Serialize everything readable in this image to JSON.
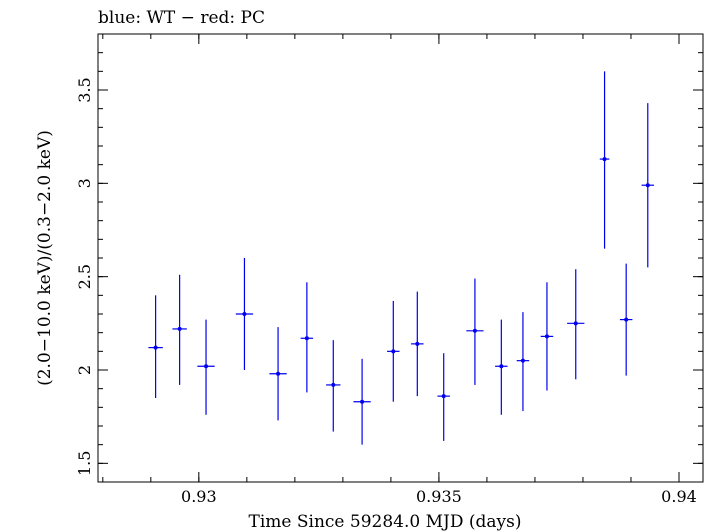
{
  "chart_data": {
    "type": "scatter",
    "title": "blue: WT − red: PC",
    "xlabel": "Time Since 59284.0 MJD (days)",
    "ylabel": "(2.0−10.0 keV)/(0.3−2.0 keV)",
    "xlim": [
      0.9279,
      0.9405
    ],
    "ylim": [
      1.4,
      3.8
    ],
    "xticks": [
      {
        "value": 0.93,
        "label": "0.93"
      },
      {
        "value": 0.935,
        "label": "0.935"
      },
      {
        "value": 0.94,
        "label": "0.94"
      }
    ],
    "yticks": [
      {
        "value": 1.5,
        "label": "1.5"
      },
      {
        "value": 2,
        "label": "2"
      },
      {
        "value": 2.5,
        "label": "2.5"
      },
      {
        "value": 3,
        "label": "3"
      },
      {
        "value": 3.5,
        "label": "3.5"
      }
    ],
    "series": [
      {
        "name": "WT",
        "color": "#0000ee",
        "points": [
          {
            "x": 0.9291,
            "xerr": 0.00015,
            "y": 2.12,
            "ylo": 1.85,
            "yhi": 2.4
          },
          {
            "x": 0.9296,
            "xerr": 0.00015,
            "y": 2.22,
            "ylo": 1.92,
            "yhi": 2.51
          },
          {
            "x": 0.93015,
            "xerr": 0.00018,
            "y": 2.02,
            "ylo": 1.76,
            "yhi": 2.27
          },
          {
            "x": 0.93095,
            "xerr": 0.00018,
            "y": 2.3,
            "ylo": 2.0,
            "yhi": 2.6
          },
          {
            "x": 0.93165,
            "xerr": 0.00018,
            "y": 1.98,
            "ylo": 1.73,
            "yhi": 2.23
          },
          {
            "x": 0.93225,
            "xerr": 0.00013,
            "y": 2.17,
            "ylo": 1.88,
            "yhi": 2.47
          },
          {
            "x": 0.9328,
            "xerr": 0.00015,
            "y": 1.92,
            "ylo": 1.67,
            "yhi": 2.16
          },
          {
            "x": 0.9334,
            "xerr": 0.00018,
            "y": 1.83,
            "ylo": 1.6,
            "yhi": 2.06
          },
          {
            "x": 0.93405,
            "xerr": 0.00013,
            "y": 2.1,
            "ylo": 1.83,
            "yhi": 2.37
          },
          {
            "x": 0.93455,
            "xerr": 0.00013,
            "y": 2.14,
            "ylo": 1.86,
            "yhi": 2.42
          },
          {
            "x": 0.9351,
            "xerr": 0.00013,
            "y": 1.86,
            "ylo": 1.62,
            "yhi": 2.09
          },
          {
            "x": 0.93575,
            "xerr": 0.00018,
            "y": 2.21,
            "ylo": 1.92,
            "yhi": 2.49
          },
          {
            "x": 0.9363,
            "xerr": 0.00013,
            "y": 2.02,
            "ylo": 1.76,
            "yhi": 2.27
          },
          {
            "x": 0.93675,
            "xerr": 0.00013,
            "y": 2.05,
            "ylo": 1.78,
            "yhi": 2.31
          },
          {
            "x": 0.93725,
            "xerr": 0.00013,
            "y": 2.18,
            "ylo": 1.89,
            "yhi": 2.47
          },
          {
            "x": 0.93785,
            "xerr": 0.00018,
            "y": 2.25,
            "ylo": 1.95,
            "yhi": 2.54
          },
          {
            "x": 0.93845,
            "xerr": 0.0001,
            "y": 3.13,
            "ylo": 2.65,
            "yhi": 3.6
          },
          {
            "x": 0.9389,
            "xerr": 0.00013,
            "y": 2.27,
            "ylo": 1.97,
            "yhi": 2.57
          },
          {
            "x": 0.93935,
            "xerr": 0.00013,
            "y": 2.99,
            "ylo": 2.55,
            "yhi": 3.43
          }
        ]
      }
    ],
    "grid": false,
    "legend": "none"
  }
}
